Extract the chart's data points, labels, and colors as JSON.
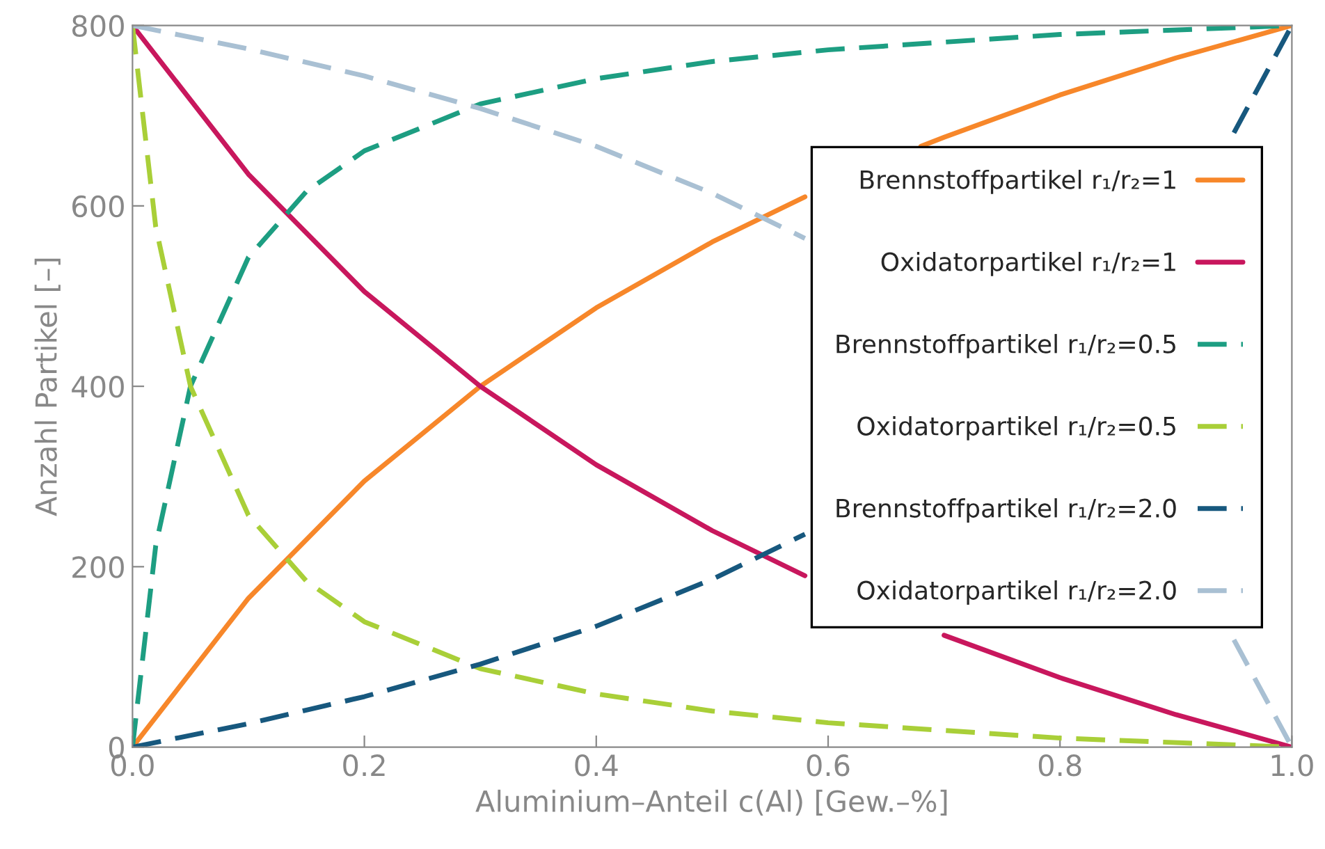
{
  "chart_data": {
    "type": "line",
    "xlabel": "Aluminium–Anteil c(Al) [Gew.–%]",
    "ylabel": "Anzahl Partikel [–]",
    "xlim": [
      0,
      1
    ],
    "xticks": [
      {
        "value": 0,
        "label": "0.0"
      },
      0.2,
      0.4,
      0.6,
      0.8,
      {
        "value": 1,
        "label": "1.0"
      }
    ],
    "ylim": [
      0,
      800
    ],
    "yticks": [
      0,
      200,
      400,
      600,
      800
    ],
    "grid": false,
    "legend": "right",
    "marker": "none",
    "series": [
      {
        "name": "Brennstoffpartikel r₁/r₂=1",
        "color": "#f7872a",
        "line_style": "solid",
        "x": [
          0,
          0.1,
          0.2,
          0.3,
          0.4,
          0.5,
          0.58,
          0.6,
          0.68,
          0.7,
          0.8,
          0.9,
          1
        ],
        "values": [
          0,
          165,
          295,
          400,
          487,
          560,
          610,
          null,
          666,
          676,
          723,
          764,
          800
        ]
      },
      {
        "name": "Oxidatorpartikel r₁/r₂=1",
        "color": "#c8175d",
        "line_style": "solid",
        "x": [
          0,
          0.1,
          0.2,
          0.3,
          0.4,
          0.5,
          0.58,
          0.6,
          0.7,
          0.8,
          0.9,
          1
        ],
        "values": [
          800,
          635,
          505,
          400,
          313,
          240,
          190,
          null,
          124,
          77,
          36,
          0
        ]
      },
      {
        "name": "Brennstoffpartikel r₁/r₂=0.5",
        "color": "#1d9e82",
        "line_style": "dashed",
        "x": [
          0,
          0.02,
          0.05,
          0.1,
          0.15,
          0.2,
          0.3,
          0.4,
          0.5,
          0.6,
          0.8,
          1
        ],
        "values": [
          0,
          223,
          400,
          543,
          616,
          661,
          713,
          741,
          760,
          773,
          790,
          800
        ]
      },
      {
        "name": "Oxidatorpartikel r₁/r₂=0.5",
        "color": "#a9cf38",
        "line_style": "dashed",
        "x": [
          0,
          0.02,
          0.05,
          0.1,
          0.15,
          0.2,
          0.3,
          0.4,
          0.5,
          0.6,
          0.8,
          1
        ],
        "values": [
          800,
          577,
          400,
          257,
          184,
          139,
          87,
          59,
          40,
          27,
          10,
          0
        ]
      },
      {
        "name": "Brennstoffpartikel r₁/r₂=2.0",
        "color": "#17587e",
        "line_style": "dashed",
        "x": [
          0,
          0.1,
          0.2,
          0.3,
          0.4,
          0.5,
          0.58,
          0.6,
          0.7,
          0.8,
          0.9,
          0.95,
          1
        ],
        "values": [
          0,
          26,
          56,
          92,
          134,
          186,
          236,
          null,
          null,
          null,
          null,
          681,
          800
        ]
      },
      {
        "name": "Oxidatorpartikel r₁/r₂=2.0",
        "color": "#a9c0d3",
        "line_style": "dashed",
        "x": [
          0,
          0.1,
          0.2,
          0.3,
          0.4,
          0.5,
          0.58,
          0.6,
          0.7,
          0.8,
          0.9,
          0.95,
          1
        ],
        "values": [
          800,
          774,
          744,
          708,
          666,
          614,
          564,
          null,
          null,
          null,
          null,
          119,
          0
        ]
      }
    ]
  }
}
